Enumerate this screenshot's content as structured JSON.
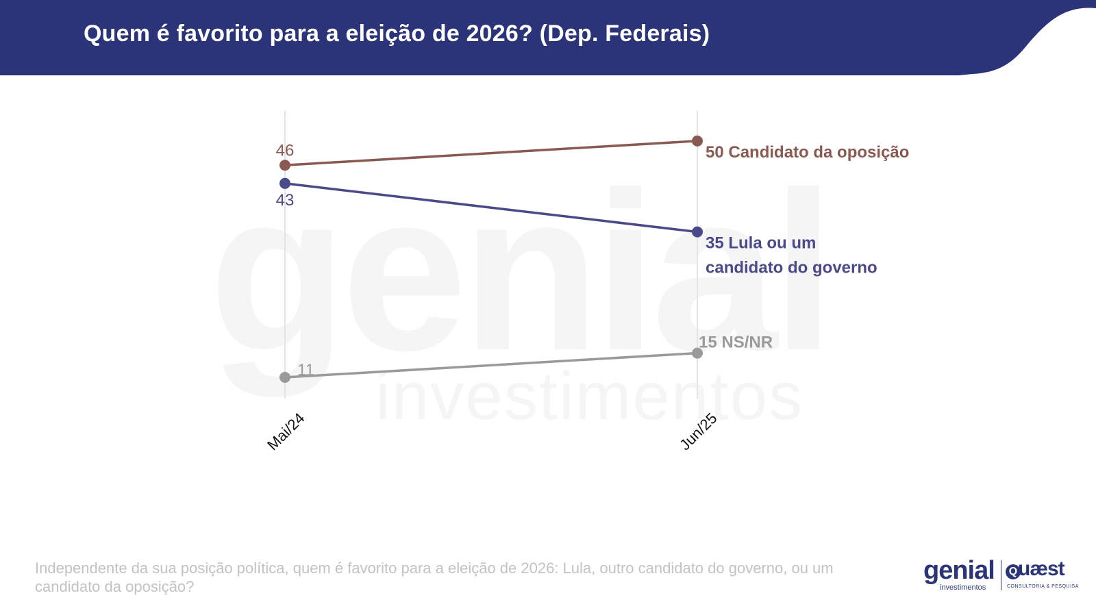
{
  "header": {
    "title": "Quem é favorito para a eleição de 2026? (Dep. Federais)"
  },
  "colors": {
    "header_bg": "#2b3479",
    "opposition": "#8a5a52",
    "government": "#4a4a8a",
    "nsnr": "#9a9a9a",
    "gridline": "#e4e4e4"
  },
  "watermark": {
    "brand": "genial",
    "subtitle": "investimentos"
  },
  "chart_data": {
    "type": "line",
    "title": "",
    "xlabel": "",
    "ylabel": "",
    "categories": [
      "Mai/24",
      "Jun/25"
    ],
    "ylim": [
      0,
      55
    ],
    "grid": "vertical",
    "series": [
      {
        "key": "opposition",
        "name": "Candidato da oposição",
        "values": [
          46,
          50
        ],
        "end_label_lines": [
          "50 Candidato da oposição"
        ],
        "start_label": "46",
        "start_label_side": "above"
      },
      {
        "key": "government",
        "name": "Lula ou um candidato do governo",
        "values": [
          43,
          35
        ],
        "end_label_lines": [
          "35 Lula ou um",
          "candidato do governo"
        ],
        "start_label": "43",
        "start_label_side": "below"
      },
      {
        "key": "nsnr",
        "name": "NS/NR",
        "values": [
          11,
          15
        ],
        "end_label_lines": [
          "15 NS/NR"
        ],
        "start_label": "11",
        "start_label_side": "right"
      }
    ]
  },
  "footer": {
    "question": "Independente da sua posição política, quem é favorito para a eleição de 2026: Lula, outro candidato do governo, ou um candidato da oposição?"
  },
  "logos": {
    "genial_word": "genial",
    "genial_sub": "investimentos",
    "quaest_mark": "Q",
    "quaest_word": "uæst",
    "quaest_sub": "CONSULTORIA & PESQUISA"
  }
}
